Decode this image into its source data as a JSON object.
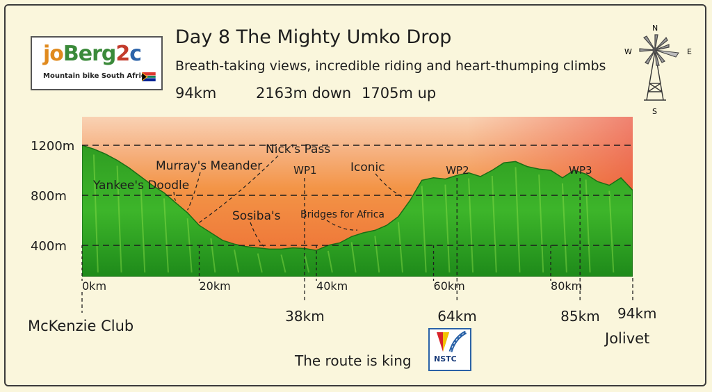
{
  "logo": {
    "word_parts": [
      "jo",
      "Berg",
      "2",
      "c"
    ],
    "tagline": "Mountain bike South Africa",
    "flag_icon": "south-africa-flag-icon"
  },
  "header": {
    "title": "Day 8 The Mighty Umko Drop",
    "subtitle": "Breath-taking views, incredible riding and heart-thumping climbs",
    "distance": "94km",
    "descent": "2163m down",
    "ascent": "1705m up"
  },
  "compass": {
    "n": "N",
    "e": "E",
    "s": "S",
    "w": "W",
    "icon": "windmill-icon"
  },
  "chart_data": {
    "type": "area",
    "xlabel": "",
    "ylabel": "",
    "xlim": [
      0,
      94
    ],
    "ylim": [
      0,
      1600
    ],
    "x_ticks": [
      {
        "value": 0,
        "label": "0km"
      },
      {
        "value": 20,
        "label": "20km"
      },
      {
        "value": 40,
        "label": "40km"
      },
      {
        "value": 60,
        "label": "60km"
      },
      {
        "value": 80,
        "label": "80km"
      }
    ],
    "y_ticks": [
      {
        "value": 400,
        "label": "400m"
      },
      {
        "value": 800,
        "label": "800m"
      },
      {
        "value": 1200,
        "label": "1200m"
      }
    ],
    "profile": {
      "x": [
        0,
        2,
        4,
        6,
        8,
        10,
        12,
        14,
        16,
        18,
        20,
        22,
        24,
        26,
        28,
        30,
        32,
        34,
        36,
        38,
        40,
        42,
        44,
        46,
        48,
        50,
        52,
        54,
        56,
        58,
        60,
        62,
        64,
        66,
        68,
        70,
        72,
        74,
        76,
        78,
        80,
        82,
        84,
        86,
        88,
        90,
        92,
        94
      ],
      "y": [
        1200,
        1170,
        1130,
        1080,
        1020,
        950,
        880,
        820,
        740,
        660,
        560,
        500,
        440,
        410,
        390,
        380,
        370,
        370,
        380,
        375,
        360,
        400,
        420,
        470,
        500,
        520,
        560,
        630,
        760,
        920,
        940,
        930,
        960,
        980,
        950,
        1000,
        1060,
        1070,
        1030,
        1010,
        1000,
        940,
        1000,
        970,
        910,
        880,
        940,
        840
      ]
    },
    "annotations": [
      {
        "label": "Yankee's Doodle",
        "x": 16
      },
      {
        "label": "Murray's Meander",
        "x": 18
      },
      {
        "label": "Nick's Pass",
        "x": 20
      },
      {
        "label": "Sosiba's",
        "x": 31
      },
      {
        "label": "Bridges for Africa",
        "x": 47
      },
      {
        "label": "Iconic",
        "x": 55
      }
    ],
    "points": [
      {
        "label": "WP1",
        "km_label": "38km",
        "x": 38
      },
      {
        "label": "WP2",
        "km_label": "64km",
        "x": 64
      },
      {
        "label": "WP3",
        "km_label": "85km",
        "x": 85
      }
    ],
    "start": {
      "label": "McKenzie Club",
      "x": 0
    },
    "finish": {
      "km_label": "94km",
      "label": "Jolivet",
      "x": 94
    }
  },
  "footer": {
    "motto": "The route is king",
    "badge_text": "NSTC",
    "badge_icon": "nstc-badge-icon"
  },
  "colors": {
    "sky_top": "#f8c9a8",
    "sky_mid": "#f39a4a",
    "sky_low": "#ee6e3a",
    "terrain_dark": "#1f8a1c",
    "terrain_light": "#6fd22e",
    "background": "#faf6dc"
  }
}
